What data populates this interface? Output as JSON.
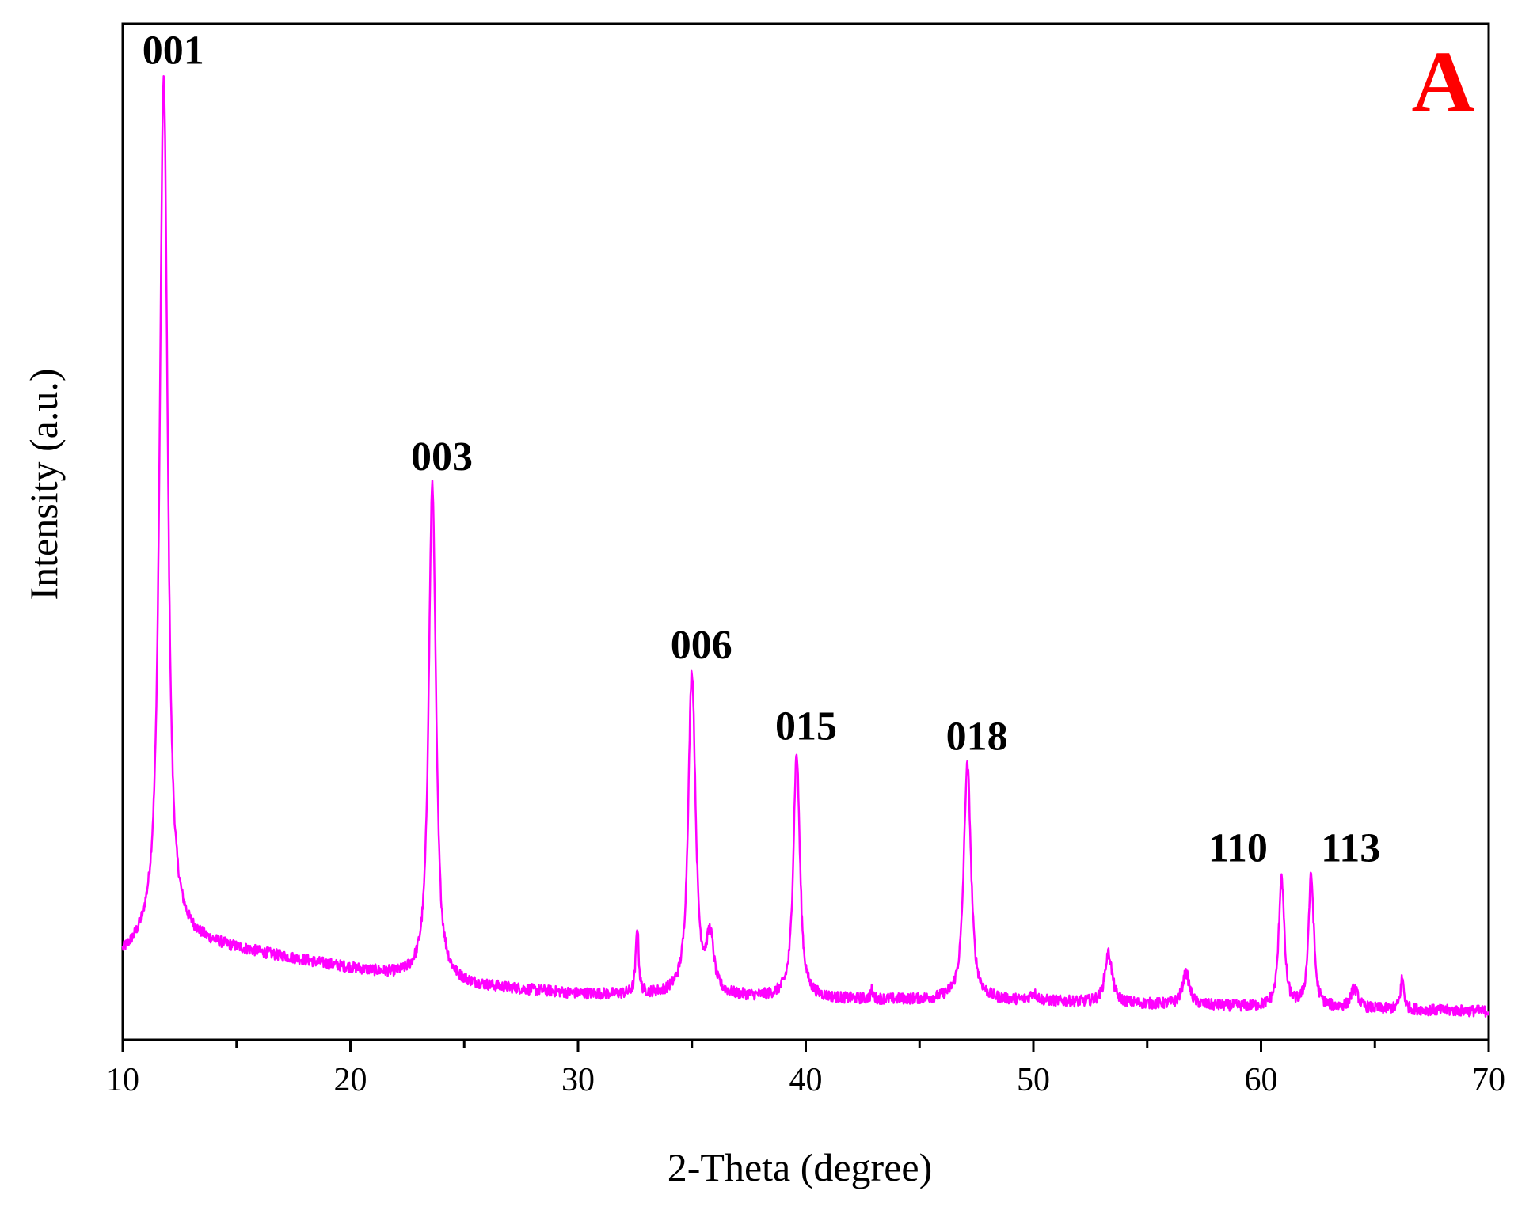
{
  "chart_data": {
    "type": "line",
    "xlabel": "2-Theta (degree)",
    "ylabel": "Intensity (a.u.)",
    "xlim": [
      10,
      70
    ],
    "ylim": [
      0,
      100
    ],
    "xticks": [
      "10",
      "20",
      "30",
      "40",
      "50",
      "60",
      "70"
    ],
    "yticks": [],
    "grid": false,
    "panel_label": "A",
    "panel_label_color": "#ff0000",
    "line_color": "#ff00ff",
    "baseline": {
      "x": [
        10,
        12,
        20,
        24,
        30,
        40,
        50,
        60,
        70
      ],
      "y": [
        8,
        10,
        7,
        5.5,
        4.5,
        4,
        3.8,
        3.2,
        2.8
      ]
    },
    "peaks": [
      {
        "label": "001",
        "x": 11.8,
        "y": 94.5,
        "width": 0.22
      },
      {
        "label": "003",
        "x": 23.6,
        "y": 54.5,
        "width": 0.2
      },
      {
        "label": "",
        "x": 32.6,
        "y": 11,
        "width": 0.08
      },
      {
        "label": "006",
        "x": 35.0,
        "y": 36,
        "width": 0.2
      },
      {
        "label": "",
        "x": 35.8,
        "y": 9.5,
        "width": 0.2
      },
      {
        "label": "015",
        "x": 39.6,
        "y": 28,
        "width": 0.18
      },
      {
        "label": "",
        "x": 42.9,
        "y": 4.8,
        "width": 0.06
      },
      {
        "label": "018",
        "x": 47.1,
        "y": 27,
        "width": 0.2
      },
      {
        "label": "",
        "x": 50.0,
        "y": 4.5,
        "width": 0.2
      },
      {
        "label": "",
        "x": 53.3,
        "y": 8.5,
        "width": 0.2
      },
      {
        "label": "",
        "x": 56.7,
        "y": 6.5,
        "width": 0.2
      },
      {
        "label": "110",
        "x": 60.9,
        "y": 16,
        "width": 0.15
      },
      {
        "label": "113",
        "x": 62.2,
        "y": 16,
        "width": 0.15
      },
      {
        "label": "",
        "x": 64.1,
        "y": 5,
        "width": 0.2
      },
      {
        "label": "",
        "x": 66.2,
        "y": 6,
        "width": 0.1
      }
    ]
  }
}
